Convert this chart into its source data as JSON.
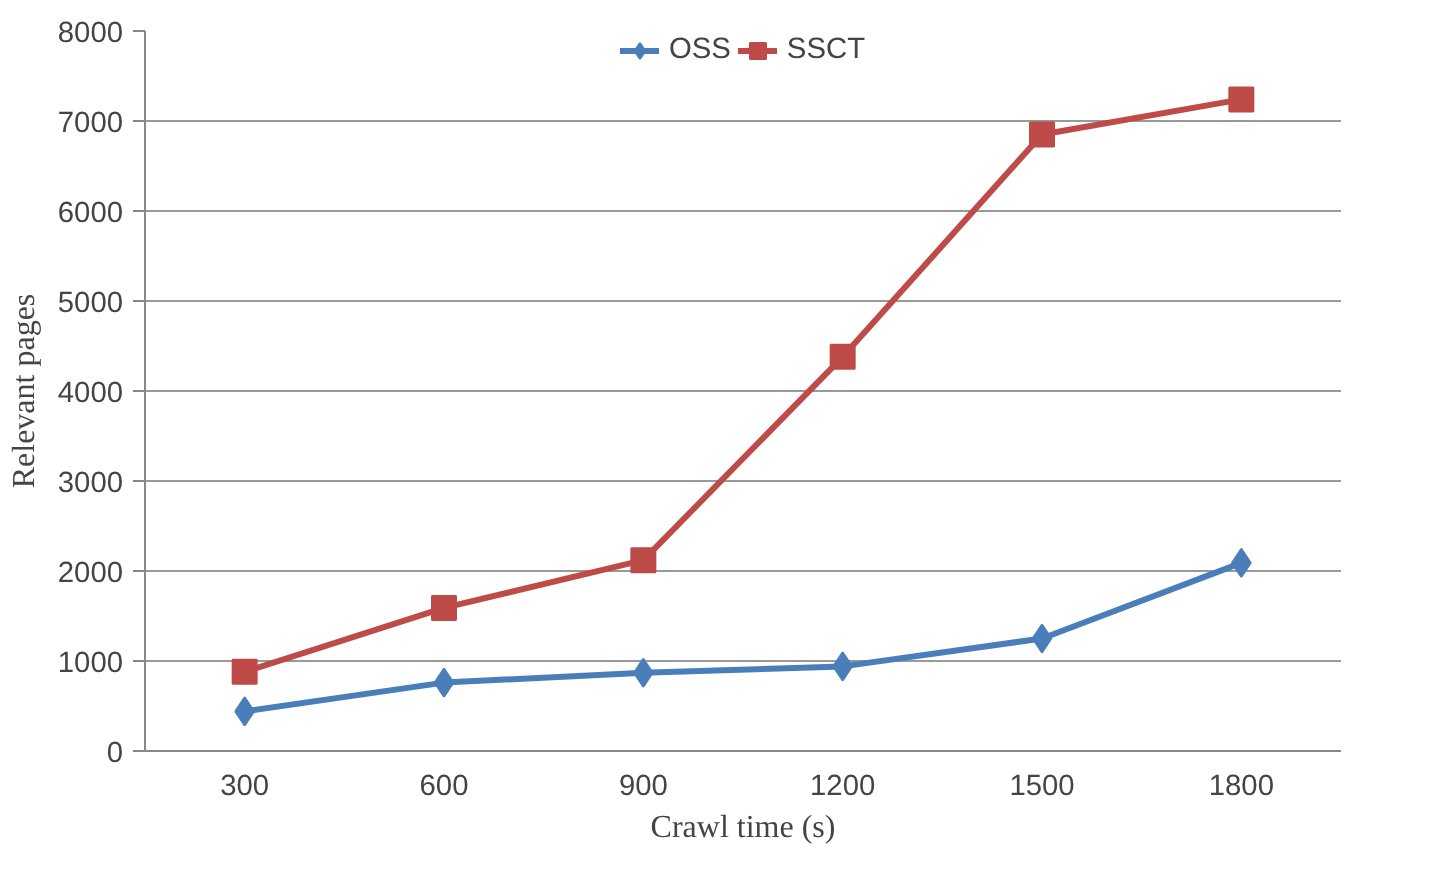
{
  "chart_data": {
    "type": "line",
    "xlabel": "Crawl time (s)",
    "ylabel": "Relevant pages",
    "categories": [
      "300",
      "600",
      "900",
      "1200",
      "1500",
      "1800"
    ],
    "series": [
      {
        "name": "OSS",
        "color": "#4a7ebb",
        "marker": "diamond",
        "values": [
          440,
          760,
          870,
          940,
          1250,
          2090
        ]
      },
      {
        "name": "SSCT",
        "color": "#be4b48",
        "marker": "square",
        "values": [
          880,
          1590,
          2120,
          4380,
          6850,
          7240
        ]
      }
    ],
    "ylim": [
      0,
      8000
    ],
    "yticks": [
      0,
      1000,
      2000,
      3000,
      4000,
      5000,
      6000,
      7000,
      8000
    ],
    "grid": "y",
    "legend": "top",
    "line_style": "solid"
  }
}
